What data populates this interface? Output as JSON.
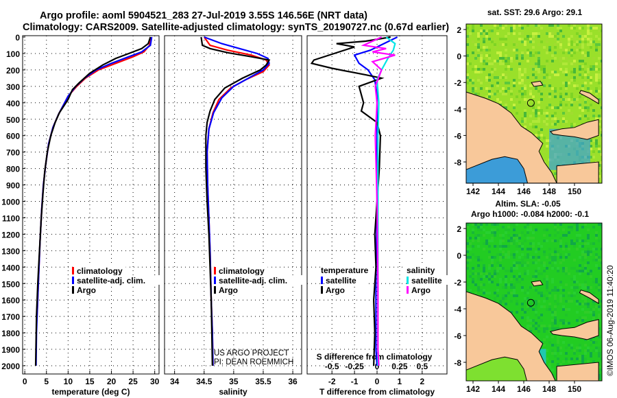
{
  "title_line1": "Argo profile: aoml 5904521_283 27-Jul-2019 3.55S 146.56E (NRT data)",
  "title_line2": "Climatology: CARS2009. Satellite-adjusted climatology: synTS_20190727.nc (0.67d earlier)",
  "credit": "US ARGO PROJECT",
  "pi": "PI: DEAN ROEMMICH",
  "stamp": "©IMOS 06-Aug-2019 11:40:20",
  "colors": {
    "climatology": "#ff0000",
    "satellite": "#0000ff",
    "argo": "#000000",
    "sal_sat": "#00e5e5",
    "sal_argo": "#ff00ff",
    "land": "#f8c89a"
  },
  "depth_ticks": [
    0,
    100,
    200,
    300,
    400,
    500,
    600,
    700,
    800,
    900,
    1000,
    1100,
    1200,
    1300,
    1400,
    1500,
    1600,
    1700,
    1800,
    1900,
    2000
  ],
  "chart_data": [
    {
      "type": "line",
      "name": "temperature",
      "xlabel": "temperature (deg C)",
      "ylabel": "depth",
      "xlim": [
        -0.5,
        31
      ],
      "ylim": [
        2050,
        0
      ],
      "xticks": [
        0,
        5,
        10,
        15,
        20,
        25,
        30
      ],
      "legend": [
        "climatology",
        "satellite-adj. clim.",
        "Argo"
      ],
      "series": [
        {
          "name": "climatology",
          "color": "#ff0000",
          "points": [
            [
              29,
              0
            ],
            [
              28.8,
              50
            ],
            [
              27.5,
              90
            ],
            [
              25,
              120
            ],
            [
              21,
              160
            ],
            [
              17,
              200
            ],
            [
              14,
              250
            ],
            [
              12,
              300
            ],
            [
              10,
              360
            ],
            [
              9,
              410
            ],
            [
              7.8,
              470
            ],
            [
              6.5,
              550
            ],
            [
              5.5,
              650
            ],
            [
              4.8,
              780
            ],
            [
              4.3,
              900
            ],
            [
              3.9,
              1050
            ],
            [
              3.5,
              1250
            ],
            [
              3.2,
              1450
            ],
            [
              2.9,
              1650
            ],
            [
              2.7,
              1750
            ]
          ]
        },
        {
          "name": "satellite-adj. clim.",
          "color": "#0000ff",
          "points": [
            [
              29.3,
              0
            ],
            [
              29,
              50
            ],
            [
              27,
              90
            ],
            [
              24,
              120
            ],
            [
              20,
              160
            ],
            [
              16.5,
              200
            ],
            [
              13.8,
              250
            ],
            [
              11.8,
              300
            ],
            [
              10,
              360
            ],
            [
              9,
              410
            ],
            [
              7.8,
              470
            ],
            [
              6.5,
              550
            ],
            [
              5.5,
              650
            ],
            [
              4.8,
              780
            ],
            [
              4.3,
              900
            ],
            [
              3.9,
              1050
            ],
            [
              3.5,
              1250
            ],
            [
              3.2,
              1450
            ],
            [
              2.9,
              1650
            ],
            [
              2.7,
              1800
            ],
            [
              2.6,
              2000
            ]
          ]
        },
        {
          "name": "Argo",
          "color": "#000000",
          "points": [
            [
              29,
              0
            ],
            [
              28.5,
              40
            ],
            [
              27,
              70
            ],
            [
              24,
              100
            ],
            [
              21,
              130
            ],
            [
              18,
              170
            ],
            [
              15,
              220
            ],
            [
              12.5,
              280
            ],
            [
              11,
              320
            ],
            [
              10,
              380
            ],
            [
              9,
              420
            ],
            [
              8,
              460
            ],
            [
              7,
              520
            ],
            [
              6,
              600
            ],
            [
              5.2,
              700
            ],
            [
              4.6,
              820
            ],
            [
              4.2,
              950
            ],
            [
              3.8,
              1100
            ],
            [
              3.4,
              1300
            ],
            [
              3,
              1500
            ],
            [
              2.7,
              1700
            ],
            [
              2.6,
              1850
            ],
            [
              2.5,
              2000
            ]
          ]
        }
      ]
    },
    {
      "type": "line",
      "name": "salinity",
      "xlabel": "salinity",
      "ylabel": "depth",
      "xlim": [
        33.83,
        36.15
      ],
      "ylim": [
        2050,
        0
      ],
      "xticks": [
        34,
        34.5,
        35,
        35.5,
        36
      ],
      "legend": [
        "climatology",
        "satellite-adj. clim.",
        "Argo"
      ],
      "series": [
        {
          "name": "climatology",
          "color": "#ff0000",
          "points": [
            [
              34.5,
              0
            ],
            [
              34.6,
              50
            ],
            [
              34.9,
              80
            ],
            [
              35.3,
              110
            ],
            [
              35.55,
              140
            ],
            [
              35.6,
              170
            ],
            [
              35.5,
              210
            ],
            [
              35.2,
              260
            ],
            [
              34.95,
              310
            ],
            [
              34.75,
              380
            ],
            [
              34.65,
              460
            ],
            [
              34.58,
              560
            ],
            [
              34.55,
              700
            ],
            [
              34.56,
              900
            ],
            [
              34.58,
              1100
            ],
            [
              34.6,
              1300
            ],
            [
              34.62,
              1600
            ],
            [
              34.64,
              1800
            ],
            [
              34.65,
              2000
            ]
          ]
        },
        {
          "name": "satellite-adj. clim.",
          "color": "#0000ff",
          "points": [
            [
              34.5,
              0
            ],
            [
              34.8,
              40
            ],
            [
              35.1,
              70
            ],
            [
              35.4,
              100
            ],
            [
              35.58,
              130
            ],
            [
              35.6,
              160
            ],
            [
              35.5,
              200
            ],
            [
              35.25,
              250
            ],
            [
              35,
              300
            ],
            [
              34.8,
              370
            ],
            [
              34.66,
              460
            ],
            [
              34.58,
              560
            ],
            [
              34.55,
              700
            ],
            [
              34.56,
              900
            ],
            [
              34.58,
              1100
            ],
            [
              34.6,
              1300
            ],
            [
              34.62,
              1600
            ],
            [
              34.64,
              1800
            ],
            [
              34.65,
              2000
            ]
          ]
        },
        {
          "name": "Argo",
          "color": "#000000",
          "points": [
            [
              34.45,
              0
            ],
            [
              34.47,
              50
            ],
            [
              34.6,
              70
            ],
            [
              34.9,
              95
            ],
            [
              35.3,
              120
            ],
            [
              35.6,
              140
            ],
            [
              35.55,
              170
            ],
            [
              35.45,
              200
            ],
            [
              35.15,
              250
            ],
            [
              34.85,
              310
            ],
            [
              34.68,
              380
            ],
            [
              34.6,
              450
            ],
            [
              34.55,
              520
            ],
            [
              34.53,
              600
            ],
            [
              34.53,
              800
            ],
            [
              34.55,
              1000
            ],
            [
              34.58,
              1200
            ],
            [
              34.6,
              1400
            ],
            [
              34.62,
              1600
            ],
            [
              34.63,
              1800
            ],
            [
              34.64,
              2000
            ]
          ]
        }
      ]
    },
    {
      "type": "line",
      "name": "difference",
      "xlabel": "T difference from climatology",
      "x2label": "S difference from climatology",
      "ylabel": "depth",
      "xlim": [
        -3.1,
        3.1
      ],
      "x2lim": [
        -0.775,
        0.775
      ],
      "ylim": [
        2050,
        0
      ],
      "xticks": [
        -2,
        -1,
        0,
        1,
        2
      ],
      "x2ticks": [
        "-0.5",
        "-0.25",
        "0",
        "0.25",
        "0.5"
      ],
      "legend_temperature": {
        "heading": "temperature",
        "items": [
          "satellite",
          "Argo"
        ]
      },
      "legend_salinity": {
        "heading": "salinity",
        "items": [
          "satellite",
          "Argo"
        ]
      },
      "series": [
        {
          "name": "T satellite",
          "color": "#0000ff",
          "axis": "T",
          "points": [
            [
              0.9,
              0
            ],
            [
              0.3,
              40
            ],
            [
              -0.3,
              80
            ],
            [
              -1,
              110
            ],
            [
              -0.8,
              160
            ],
            [
              -0.4,
              200
            ],
            [
              -0.1,
              260
            ],
            [
              0,
              350
            ],
            [
              0,
              600
            ],
            [
              0,
              1000
            ],
            [
              -0.05,
              1500
            ],
            [
              -0.05,
              1900
            ],
            [
              0,
              2000
            ]
          ]
        },
        {
          "name": "T Argo",
          "color": "#000000",
          "axis": "T",
          "points": [
            [
              0.6,
              0
            ],
            [
              -0.5,
              25
            ],
            [
              -1.8,
              40
            ],
            [
              -1,
              60
            ],
            [
              -2.8,
              140
            ],
            [
              -2.9,
              160
            ],
            [
              -2,
              190
            ],
            [
              -0.5,
              230
            ],
            [
              0.2,
              250
            ],
            [
              -0.8,
              300
            ],
            [
              -0.6,
              400
            ],
            [
              -0.7,
              450
            ],
            [
              0,
              520
            ],
            [
              0.15,
              600
            ],
            [
              0.1,
              800
            ],
            [
              0,
              1000
            ],
            [
              -0.1,
              1200
            ],
            [
              -0.05,
              1400
            ],
            [
              -0.15,
              1600
            ],
            [
              -0.1,
              1800
            ],
            [
              -0.15,
              2000
            ]
          ]
        },
        {
          "name": "S satellite",
          "color": "#00e5e5",
          "axis": "S",
          "points": [
            [
              0.1,
              0
            ],
            [
              0.2,
              40
            ],
            [
              0.18,
              80
            ],
            [
              0.12,
              130
            ],
            [
              0.05,
              200
            ],
            [
              0,
              260
            ],
            [
              0.02,
              400
            ],
            [
              0.01,
              600
            ],
            [
              0.01,
              1000
            ],
            [
              0.01,
              1500
            ],
            [
              0.01,
              2000
            ]
          ]
        },
        {
          "name": "S Argo",
          "color": "#ff00ff",
          "axis": "S",
          "points": [
            [
              0.05,
              0
            ],
            [
              -0.15,
              50
            ],
            [
              0.1,
              70
            ],
            [
              -0.05,
              90
            ],
            [
              0.2,
              110
            ],
            [
              -0.05,
              150
            ],
            [
              0.05,
              200
            ],
            [
              -0.02,
              300
            ],
            [
              0,
              400
            ],
            [
              -0.02,
              600
            ],
            [
              -0.01,
              800
            ],
            [
              0,
              1000
            ],
            [
              0.01,
              1500
            ],
            [
              0.01,
              1900
            ],
            [
              0.02,
              2000
            ]
          ]
        }
      ]
    }
  ],
  "maps": [
    {
      "name": "sst",
      "title": "sat. SST: 29.6 Argo: 29.1",
      "lon_ticks": [
        142,
        144,
        146,
        148,
        150
      ],
      "lat_ticks": [
        2,
        0,
        -2,
        -4,
        -6,
        -8
      ],
      "argo_pos": [
        146.56,
        -3.55
      ],
      "ocean": "#9ae02a"
    },
    {
      "name": "sla",
      "title": "Altim. SLA: -0.05",
      "title2": "Argo h1000: -0.084 h2000: -0.1",
      "lon_ticks": [
        142,
        144,
        146,
        148,
        150
      ],
      "lat_ticks": [
        2,
        0,
        -2,
        -4,
        -6,
        -8
      ],
      "argo_pos": [
        146.56,
        -3.55
      ],
      "ocean": "#22cc22"
    }
  ]
}
